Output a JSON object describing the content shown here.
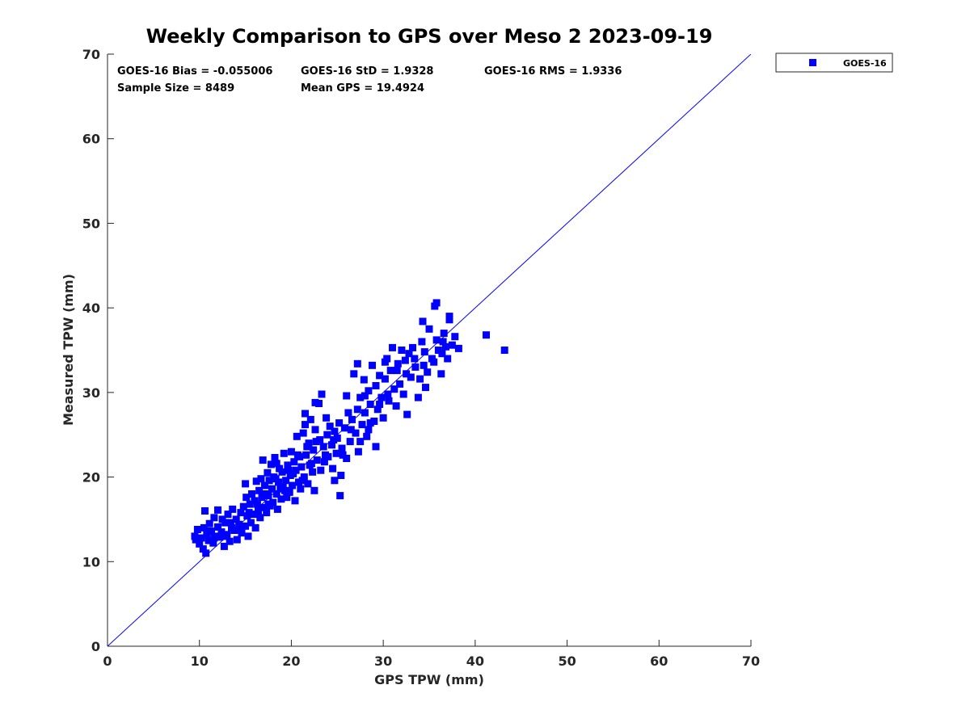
{
  "chart_data": {
    "type": "scatter",
    "title": "Weekly Comparison to GPS over Meso 2 2023-09-19",
    "xlabel": "GPS TPW (mm)",
    "ylabel": "Measured TPW (mm)",
    "xlim": [
      0,
      70
    ],
    "ylim": [
      0,
      70
    ],
    "xticks": [
      "0",
      "10",
      "20",
      "30",
      "40",
      "50",
      "60",
      "70"
    ],
    "yticks": [
      "0",
      "10",
      "20",
      "30",
      "40",
      "50",
      "60",
      "70"
    ],
    "grid": false,
    "legend_position": "outside top-right",
    "marker_color": "#0000ff",
    "stats": {
      "bias": "GOES-16 Bias = -0.055006",
      "std": "GOES-16 StD = 1.9328",
      "rms": "GOES-16 RMS = 1.9336",
      "sample_size": "Sample Size = 8489",
      "mean_gps": "Mean GPS = 19.4924"
    },
    "series": [
      {
        "name": "GOES-16",
        "color": "#0000ff",
        "marker": "square",
        "points": [
          [
            9.5,
            13.0
          ],
          [
            9.6,
            12.6
          ],
          [
            9.8,
            13.8
          ],
          [
            10.0,
            12.1
          ],
          [
            10.2,
            12.8
          ],
          [
            10.4,
            11.5
          ],
          [
            10.5,
            14.0
          ],
          [
            10.6,
            16.0
          ],
          [
            10.7,
            11.0
          ],
          [
            10.8,
            13.2
          ],
          [
            11.0,
            12.5
          ],
          [
            11.1,
            14.5
          ],
          [
            11.3,
            13.6
          ],
          [
            11.5,
            12.2
          ],
          [
            11.6,
            15.2
          ],
          [
            11.8,
            13.0
          ],
          [
            12.0,
            14.1
          ],
          [
            12.0,
            16.1
          ],
          [
            12.2,
            12.9
          ],
          [
            12.4,
            13.5
          ],
          [
            12.5,
            15.0
          ],
          [
            12.7,
            11.8
          ],
          [
            12.8,
            14.6
          ],
          [
            13.0,
            13.2
          ],
          [
            13.1,
            15.6
          ],
          [
            13.3,
            12.4
          ],
          [
            13.5,
            14.0
          ],
          [
            13.6,
            16.2
          ],
          [
            13.8,
            13.7
          ],
          [
            14.0,
            15.0
          ],
          [
            14.1,
            12.6
          ],
          [
            14.3,
            14.4
          ],
          [
            14.5,
            15.8
          ],
          [
            14.6,
            13.4
          ],
          [
            14.8,
            16.5
          ],
          [
            15.0,
            14.2
          ],
          [
            15.0,
            19.2
          ],
          [
            15.1,
            17.6
          ],
          [
            15.2,
            15.4
          ],
          [
            15.3,
            13.0
          ],
          [
            15.5,
            16.8
          ],
          [
            15.6,
            14.6
          ],
          [
            15.7,
            18.0
          ],
          [
            15.9,
            15.6
          ],
          [
            16.0,
            17.2
          ],
          [
            16.1,
            14.0
          ],
          [
            16.2,
            19.5
          ],
          [
            16.4,
            16.0
          ],
          [
            16.5,
            18.4
          ],
          [
            16.6,
            15.2
          ],
          [
            16.8,
            17.6
          ],
          [
            16.9,
            22.0
          ],
          [
            17.0,
            16.4
          ],
          [
            17.1,
            19.0
          ],
          [
            17.3,
            15.8
          ],
          [
            17.4,
            20.5
          ],
          [
            17.5,
            17.8
          ],
          [
            17.7,
            16.6
          ],
          [
            17.8,
            21.5
          ],
          [
            17.9,
            18.6
          ],
          [
            18.0,
            17.0
          ],
          [
            18.1,
            20.0
          ],
          [
            18.2,
            22.3
          ],
          [
            18.4,
            18.0
          ],
          [
            18.5,
            16.2
          ],
          [
            18.6,
            19.4
          ],
          [
            18.7,
            21.0
          ],
          [
            18.9,
            17.4
          ],
          [
            19.0,
            20.6
          ],
          [
            19.1,
            18.8
          ],
          [
            19.2,
            22.8
          ],
          [
            19.4,
            19.6
          ],
          [
            19.5,
            17.6
          ],
          [
            19.6,
            21.4
          ],
          [
            19.8,
            18.2
          ],
          [
            19.9,
            20.2
          ],
          [
            20.0,
            23.0
          ],
          [
            20.1,
            19.0
          ],
          [
            20.3,
            21.8
          ],
          [
            20.4,
            17.2
          ],
          [
            20.5,
            20.8
          ],
          [
            20.6,
            24.8
          ],
          [
            20.8,
            19.4
          ],
          [
            20.9,
            22.4
          ],
          [
            21.0,
            18.6
          ],
          [
            21.1,
            21.2
          ],
          [
            21.3,
            25.2
          ],
          [
            21.4,
            20.0
          ],
          [
            21.5,
            27.5
          ],
          [
            21.6,
            22.6
          ],
          [
            21.8,
            19.2
          ],
          [
            21.9,
            24.0
          ],
          [
            22.0,
            21.4
          ],
          [
            22.1,
            26.8
          ],
          [
            22.3,
            20.6
          ],
          [
            22.4,
            23.2
          ],
          [
            22.5,
            18.4
          ],
          [
            22.6,
            25.6
          ],
          [
            22.8,
            22.0
          ],
          [
            23.0,
            28.7
          ],
          [
            23.1,
            24.4
          ],
          [
            23.2,
            20.8
          ],
          [
            23.3,
            29.8
          ],
          [
            23.5,
            23.6
          ],
          [
            23.6,
            21.8
          ],
          [
            23.8,
            27.0
          ],
          [
            23.9,
            25.0
          ],
          [
            24.0,
            22.4
          ],
          [
            24.2,
            26.0
          ],
          [
            24.4,
            23.8
          ],
          [
            24.5,
            21.0
          ],
          [
            24.7,
            25.4
          ],
          [
            24.9,
            22.8
          ],
          [
            25.0,
            24.6
          ],
          [
            25.2,
            26.4
          ],
          [
            25.4,
            20.2
          ],
          [
            25.5,
            23.4
          ],
          [
            25.8,
            25.8
          ],
          [
            26.0,
            22.2
          ],
          [
            26.2,
            27.6
          ],
          [
            26.4,
            24.2
          ],
          [
            26.6,
            26.8
          ],
          [
            26.8,
            32.2
          ],
          [
            27.0,
            25.2
          ],
          [
            27.2,
            28.0
          ],
          [
            27.3,
            23.0
          ],
          [
            27.5,
            29.4
          ],
          [
            27.7,
            26.2
          ],
          [
            27.9,
            31.5
          ],
          [
            28.0,
            27.6
          ],
          [
            28.2,
            24.8
          ],
          [
            28.4,
            30.2
          ],
          [
            28.6,
            28.6
          ],
          [
            28.8,
            33.2
          ],
          [
            29.0,
            26.6
          ],
          [
            29.2,
            30.8
          ],
          [
            29.4,
            28.0
          ],
          [
            29.6,
            32.0
          ],
          [
            29.8,
            29.4
          ],
          [
            30.0,
            27.0
          ],
          [
            30.2,
            31.6
          ],
          [
            30.4,
            34.0
          ],
          [
            30.6,
            29.0
          ],
          [
            30.8,
            32.6
          ],
          [
            31.0,
            35.3
          ],
          [
            31.2,
            30.4
          ],
          [
            31.4,
            28.4
          ],
          [
            31.6,
            33.4
          ],
          [
            31.8,
            31.0
          ],
          [
            32.0,
            35.0
          ],
          [
            32.2,
            29.8
          ],
          [
            32.4,
            33.8
          ],
          [
            32.6,
            27.4
          ],
          [
            32.8,
            34.6
          ],
          [
            33.0,
            31.8
          ],
          [
            33.2,
            35.3
          ],
          [
            33.5,
            33.0
          ],
          [
            33.8,
            29.4
          ],
          [
            34.0,
            31.6
          ],
          [
            34.2,
            36.0
          ],
          [
            34.4,
            33.2
          ],
          [
            34.6,
            30.6
          ],
          [
            34.8,
            32.4
          ],
          [
            35.0,
            37.5
          ],
          [
            35.3,
            34.0
          ],
          [
            35.6,
            40.2
          ],
          [
            35.8,
            36.2
          ],
          [
            36.0,
            35.0
          ],
          [
            36.3,
            32.2
          ],
          [
            36.6,
            37.0
          ],
          [
            36.8,
            35.4
          ],
          [
            37.0,
            34.0
          ],
          [
            37.2,
            38.6
          ],
          [
            37.5,
            35.6
          ],
          [
            37.8,
            36.6
          ],
          [
            38.2,
            35.2
          ],
          [
            34.3,
            38.4
          ],
          [
            35.8,
            40.6
          ],
          [
            37.2,
            39.0
          ],
          [
            36.4,
            34.6
          ],
          [
            17.5,
            16.8
          ],
          [
            18.3,
            19.8
          ],
          [
            19.3,
            18.4
          ],
          [
            20.2,
            20.4
          ],
          [
            21.2,
            19.6
          ],
          [
            22.2,
            21.6
          ],
          [
            20.7,
            22.6
          ],
          [
            19.7,
            20.8
          ],
          [
            18.8,
            18.6
          ],
          [
            17.2,
            18.0
          ],
          [
            16.3,
            16.8
          ],
          [
            15.4,
            15.8
          ],
          [
            14.4,
            13.8
          ],
          [
            13.4,
            14.6
          ],
          [
            12.6,
            13.0
          ],
          [
            11.6,
            12.8
          ],
          [
            10.9,
            13.6
          ],
          [
            16.7,
            19.8
          ],
          [
            17.6,
            19.6
          ],
          [
            18.4,
            21.6
          ],
          [
            21.7,
            23.6
          ],
          [
            22.7,
            24.2
          ],
          [
            23.7,
            22.6
          ],
          [
            24.6,
            24.4
          ],
          [
            25.6,
            22.6
          ],
          [
            26.5,
            25.6
          ],
          [
            27.5,
            24.2
          ],
          [
            28.6,
            26.4
          ],
          [
            29.6,
            28.6
          ],
          [
            30.5,
            29.8
          ],
          [
            31.5,
            32.6
          ],
          [
            32.5,
            32.2
          ],
          [
            33.4,
            34.0
          ],
          [
            34.5,
            34.8
          ],
          [
            35.5,
            33.6
          ],
          [
            36.5,
            36.0
          ],
          [
            29.2,
            23.6
          ],
          [
            28.4,
            25.6
          ],
          [
            25.3,
            17.8
          ],
          [
            24.7,
            19.6
          ],
          [
            41.2,
            36.8
          ],
          [
            43.2,
            35.0
          ],
          [
            27.2,
            33.4
          ],
          [
            26.0,
            29.6
          ],
          [
            28.0,
            29.6
          ],
          [
            30.2,
            33.6
          ],
          [
            22.6,
            28.8
          ],
          [
            21.5,
            26.2
          ]
        ]
      }
    ]
  }
}
